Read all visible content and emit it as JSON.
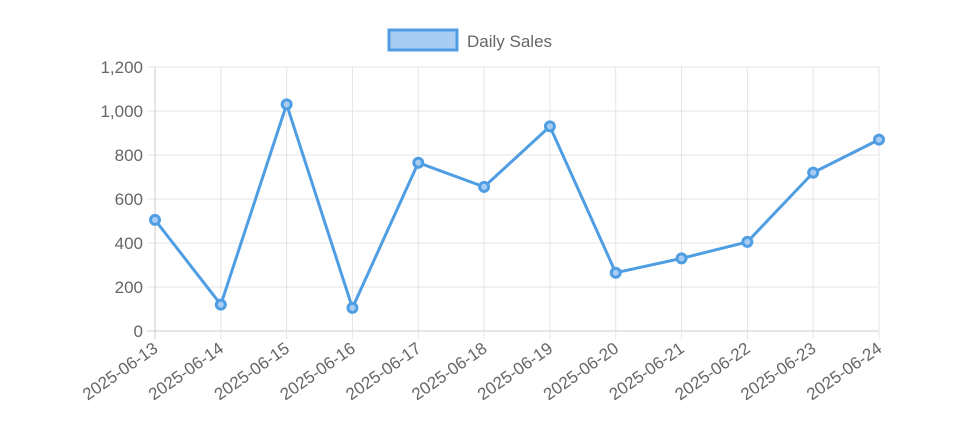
{
  "chart_data": {
    "type": "line",
    "title": "",
    "xlabel": "",
    "ylabel": "",
    "categories": [
      "2025-06-13",
      "2025-06-14",
      "2025-06-15",
      "2025-06-16",
      "2025-06-17",
      "2025-06-18",
      "2025-06-19",
      "2025-06-20",
      "2025-06-21",
      "2025-06-22",
      "2025-06-23",
      "2025-06-24"
    ],
    "series": [
      {
        "name": "Daily Sales",
        "values": [
          505,
          120,
          1030,
          105,
          765,
          655,
          930,
          265,
          330,
          405,
          720,
          870
        ],
        "color": "#4f9ee3",
        "fill": "#a9cdf2"
      }
    ],
    "ylim": [
      0,
      1200
    ],
    "yticks": [
      0,
      200,
      400,
      600,
      800,
      1000,
      1200
    ],
    "ytick_labels": [
      "0",
      "200",
      "400",
      "600",
      "800",
      "1,000",
      "1,200"
    ],
    "grid": true,
    "legend": "top-center"
  }
}
